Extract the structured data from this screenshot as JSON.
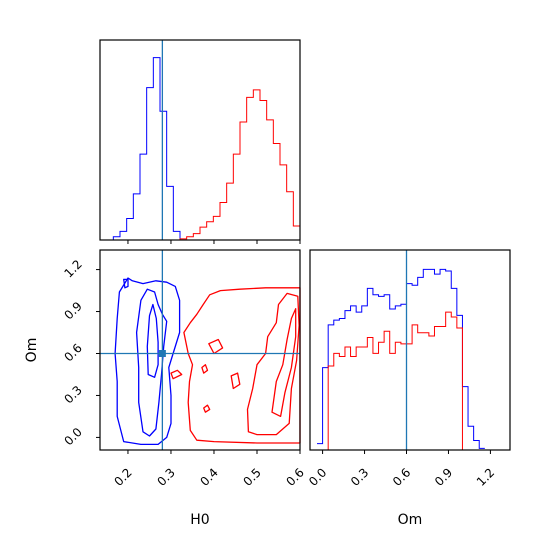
{
  "colors": {
    "series_a": "#0000ff",
    "series_b": "#ff0000",
    "truth": "#1f77b4"
  },
  "chart_data": {
    "type": "corner",
    "parameters": [
      "H0",
      "Om"
    ],
    "truths": {
      "H0": 0.28,
      "Om": 0.6
    },
    "axes": {
      "H0": {
        "label": "H0",
        "range": [
          0.135,
          0.6
        ],
        "ticks": [
          0.2,
          0.3,
          0.4,
          0.5,
          0.6
        ]
      },
      "Om": {
        "label": "Om",
        "range": [
          -0.09,
          1.34
        ],
        "ticks": [
          0.0,
          0.3,
          0.6,
          0.9,
          1.2
        ]
      }
    },
    "grid": false,
    "legend": "none",
    "hist_H0": {
      "bin_edges": [
        0.135,
        0.1505,
        0.166,
        0.1815,
        0.197,
        0.2125,
        0.228,
        0.2435,
        0.259,
        0.2745,
        0.29,
        0.3055,
        0.321,
        0.3365,
        0.352,
        0.3675,
        0.383,
        0.3985,
        0.414,
        0.4295,
        0.445,
        0.4605,
        0.476,
        0.4915,
        0.507,
        0.5225,
        0.538,
        0.5535,
        0.569,
        0.5845,
        0.6
      ],
      "series": [
        {
          "color": "blue",
          "values": [
            0,
            0,
            3,
            8,
            20,
            43,
            80,
            142,
            170,
            120,
            50,
            8,
            0,
            0,
            0,
            0,
            0,
            0,
            0,
            0,
            0,
            0,
            0,
            0,
            0,
            0,
            0,
            0,
            0,
            0
          ]
        },
        {
          "color": "red",
          "values": [
            0,
            0,
            0,
            0,
            0,
            0,
            0,
            0,
            0,
            0,
            0,
            0,
            1,
            3,
            6,
            12,
            17,
            22,
            35,
            53,
            80,
            110,
            133,
            140,
            130,
            112,
            90,
            70,
            45,
            13
          ]
        }
      ]
    },
    "hist_Om": {
      "bin_edges": [
        -0.04,
        0.0,
        0.04,
        0.08,
        0.12,
        0.16,
        0.2,
        0.24,
        0.28,
        0.32,
        0.36,
        0.4,
        0.44,
        0.48,
        0.52,
        0.56,
        0.6,
        0.64,
        0.68,
        0.72,
        0.76,
        0.8,
        0.84,
        0.88,
        0.92,
        0.96,
        1.0,
        1.04,
        1.08,
        1.12,
        1.16
      ],
      "series": [
        {
          "color": "blue",
          "values": [
            4,
            52,
            79,
            82,
            83,
            88,
            91,
            87,
            91,
            102,
            98,
            97,
            98,
            89,
            91,
            92,
            105,
            104,
            109,
            114,
            114,
            111,
            114,
            113,
            102,
            85,
            40,
            15,
            6,
            1
          ]
        },
        {
          "color": "red",
          "values": [
            0,
            0,
            53,
            61,
            59,
            65,
            59,
            65,
            65,
            71,
            61,
            68,
            75,
            61,
            68,
            67,
            67,
            79,
            74,
            74,
            72,
            78,
            78,
            87,
            84,
            77,
            0,
            0,
            0,
            0
          ]
        }
      ]
    },
    "contours_2d": [
      {
        "color": "blue",
        "level": "outer",
        "points": [
          [
            0.19,
            -0.03
          ],
          [
            0.175,
            0.15
          ],
          [
            0.175,
            0.4
          ],
          [
            0.17,
            0.6
          ],
          [
            0.175,
            0.85
          ],
          [
            0.18,
            1.04
          ],
          [
            0.2,
            1.14
          ],
          [
            0.21,
            1.12
          ],
          [
            0.235,
            1.1
          ],
          [
            0.265,
            1.12
          ],
          [
            0.29,
            1.11
          ],
          [
            0.31,
            1.08
          ],
          [
            0.32,
            0.98
          ],
          [
            0.32,
            0.75
          ],
          [
            0.305,
            0.6
          ],
          [
            0.295,
            0.5
          ],
          [
            0.3,
            0.3
          ],
          [
            0.3,
            0.1
          ],
          [
            0.29,
            0.0
          ],
          [
            0.27,
            -0.05
          ],
          [
            0.23,
            -0.05
          ],
          [
            0.19,
            -0.03
          ]
        ]
      },
      {
        "color": "blue",
        "level": "mid",
        "points": [
          [
            0.235,
            0.04
          ],
          [
            0.225,
            0.25
          ],
          [
            0.225,
            0.5
          ],
          [
            0.22,
            0.75
          ],
          [
            0.23,
            0.98
          ],
          [
            0.245,
            1.06
          ],
          [
            0.262,
            1.04
          ],
          [
            0.27,
            0.95
          ],
          [
            0.28,
            0.88
          ],
          [
            0.29,
            0.83
          ],
          [
            0.283,
            0.65
          ],
          [
            0.278,
            0.45
          ],
          [
            0.272,
            0.25
          ],
          [
            0.265,
            0.06
          ],
          [
            0.25,
            0.01
          ],
          [
            0.235,
            0.04
          ]
        ]
      },
      {
        "color": "blue",
        "level": "inner",
        "points": [
          [
            0.247,
            0.45
          ],
          [
            0.245,
            0.65
          ],
          [
            0.25,
            0.87
          ],
          [
            0.258,
            0.95
          ],
          [
            0.266,
            0.85
          ],
          [
            0.27,
            0.68
          ],
          [
            0.27,
            0.52
          ],
          [
            0.262,
            0.43
          ],
          [
            0.247,
            0.45
          ]
        ]
      },
      {
        "color": "blue",
        "level": "blob",
        "points": [
          [
            0.193,
            1.07
          ],
          [
            0.19,
            1.13
          ],
          [
            0.2,
            1.13
          ],
          [
            0.2,
            1.08
          ],
          [
            0.193,
            1.07
          ]
        ]
      },
      {
        "color": "red",
        "level": "outer",
        "points": [
          [
            0.375,
            0.95
          ],
          [
            0.39,
            1.02
          ],
          [
            0.415,
            1.05
          ],
          [
            0.46,
            1.06
          ],
          [
            0.52,
            1.07
          ],
          [
            0.6,
            1.07
          ],
          [
            0.6,
            -0.04
          ],
          [
            0.5,
            -0.04
          ],
          [
            0.4,
            -0.03
          ],
          [
            0.36,
            -0.02
          ],
          [
            0.345,
            0.05
          ],
          [
            0.34,
            0.25
          ],
          [
            0.343,
            0.4
          ],
          [
            0.35,
            0.52
          ],
          [
            0.34,
            0.6
          ],
          [
            0.33,
            0.75
          ],
          [
            0.345,
            0.82
          ],
          [
            0.36,
            0.88
          ],
          [
            0.375,
            0.95
          ]
        ]
      },
      {
        "color": "red",
        "level": "mid",
        "points": [
          [
            0.48,
            0.04
          ],
          [
            0.478,
            0.2
          ],
          [
            0.49,
            0.35
          ],
          [
            0.5,
            0.52
          ],
          [
            0.52,
            0.6
          ],
          [
            0.525,
            0.72
          ],
          [
            0.545,
            0.82
          ],
          [
            0.55,
            0.95
          ],
          [
            0.57,
            1.03
          ],
          [
            0.595,
            1.01
          ],
          [
            0.598,
            0.8
          ],
          [
            0.592,
            0.55
          ],
          [
            0.58,
            0.35
          ],
          [
            0.575,
            0.1
          ],
          [
            0.545,
            0.02
          ],
          [
            0.5,
            0.02
          ],
          [
            0.48,
            0.04
          ]
        ]
      },
      {
        "color": "red",
        "level": "inner",
        "points": [
          [
            0.535,
            0.18
          ],
          [
            0.545,
            0.4
          ],
          [
            0.56,
            0.52
          ],
          [
            0.57,
            0.7
          ],
          [
            0.58,
            0.85
          ],
          [
            0.59,
            0.92
          ],
          [
            0.59,
            0.72
          ],
          [
            0.58,
            0.5
          ],
          [
            0.565,
            0.32
          ],
          [
            0.555,
            0.15
          ],
          [
            0.535,
            0.18
          ]
        ]
      },
      {
        "color": "red",
        "level": "blob",
        "points": [
          [
            0.305,
            0.42
          ],
          [
            0.3,
            0.46
          ],
          [
            0.315,
            0.48
          ],
          [
            0.325,
            0.45
          ],
          [
            0.305,
            0.42
          ]
        ]
      },
      {
        "color": "red",
        "level": "blob",
        "points": [
          [
            0.4,
            0.6
          ],
          [
            0.388,
            0.67
          ],
          [
            0.41,
            0.7
          ],
          [
            0.42,
            0.64
          ],
          [
            0.4,
            0.6
          ]
        ]
      },
      {
        "color": "red",
        "level": "blob",
        "points": [
          [
            0.445,
            0.35
          ],
          [
            0.44,
            0.44
          ],
          [
            0.455,
            0.46
          ],
          [
            0.46,
            0.38
          ],
          [
            0.445,
            0.35
          ]
        ]
      },
      {
        "color": "red",
        "level": "blob",
        "points": [
          [
            0.376,
            0.46
          ],
          [
            0.372,
            0.5
          ],
          [
            0.38,
            0.52
          ],
          [
            0.385,
            0.48
          ],
          [
            0.376,
            0.46
          ]
        ]
      },
      {
        "color": "red",
        "level": "blob",
        "points": [
          [
            0.38,
            0.18
          ],
          [
            0.376,
            0.21
          ],
          [
            0.385,
            0.23
          ],
          [
            0.39,
            0.2
          ],
          [
            0.38,
            0.18
          ]
        ]
      }
    ]
  }
}
